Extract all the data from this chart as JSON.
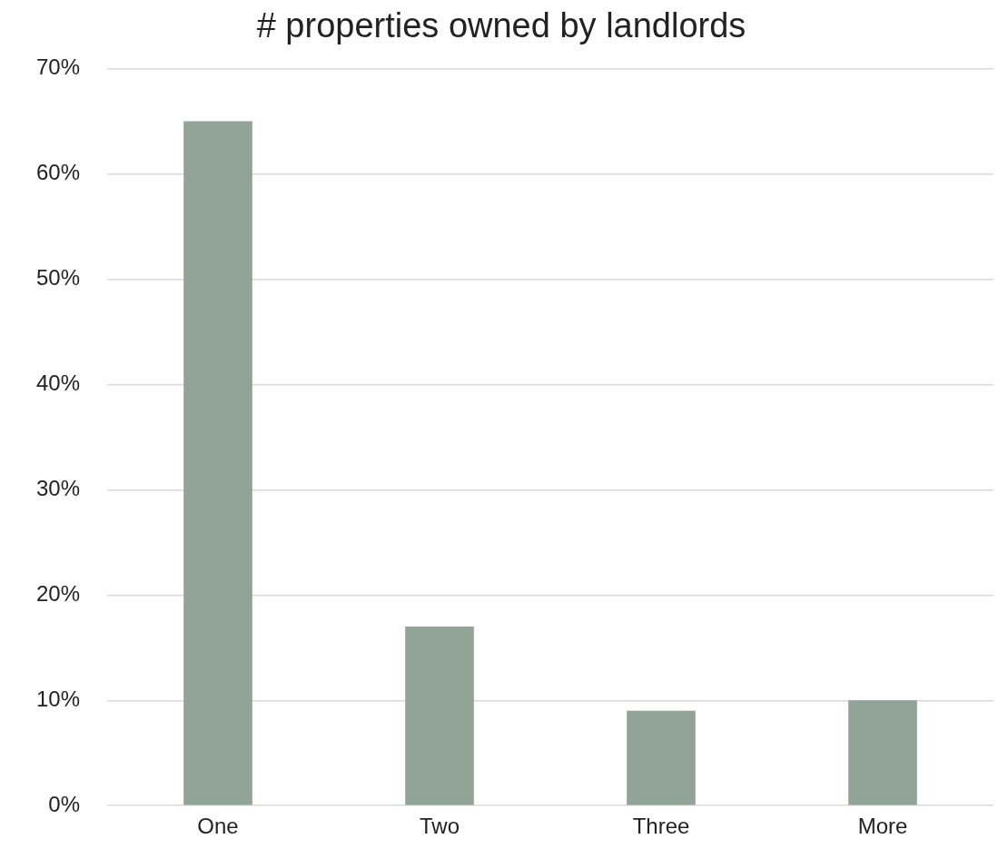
{
  "chart_data": {
    "type": "bar",
    "title": "# properties owned by landlords",
    "categories": [
      "One",
      "Two",
      "Three",
      "More"
    ],
    "values": [
      65,
      17,
      9,
      10
    ],
    "color": "#92a398",
    "ylim": [
      0,
      70
    ],
    "yticks": [
      {
        "value": 0,
        "label": "0%"
      },
      {
        "value": 10,
        "label": "10%"
      },
      {
        "value": 20,
        "label": "20%"
      },
      {
        "value": 30,
        "label": "30%"
      },
      {
        "value": 40,
        "label": "40%"
      },
      {
        "value": 50,
        "label": "50%"
      },
      {
        "value": 60,
        "label": "60%"
      },
      {
        "value": 70,
        "label": "70%"
      }
    ],
    "grid": "y"
  }
}
